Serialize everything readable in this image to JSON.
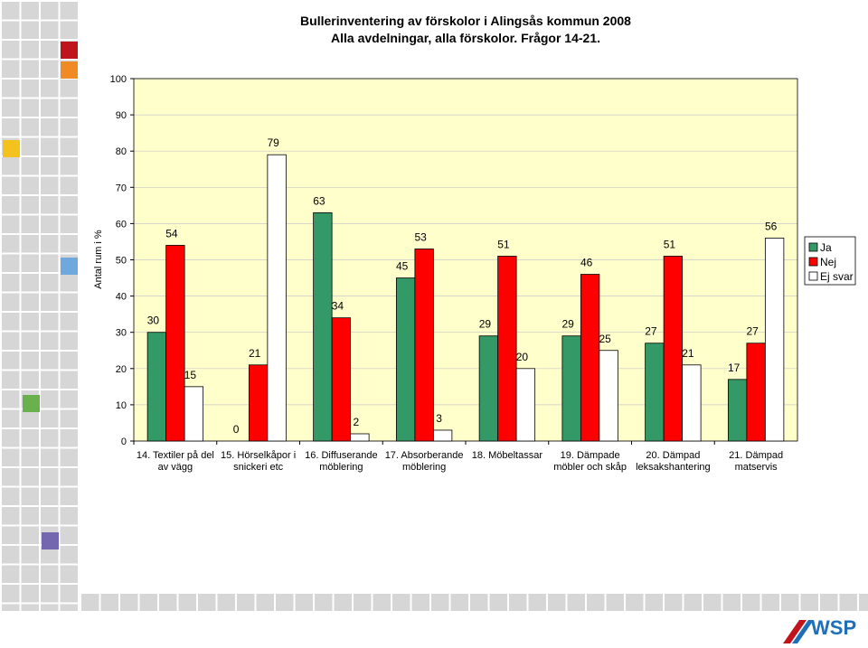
{
  "chart_data": {
    "type": "bar",
    "title": "Bullerinventering av förskolor i Alingsås kommun  2008",
    "subtitle": "Alla avdelningar, alla förskolor. Frågor 14-21.",
    "y_label": "Antal rum i %",
    "categories": [
      "14. Textiler på del av vägg",
      "15. Hörselkåpor i snickeri etc",
      "16. Diffuserande möblering",
      "17. Absorberande möblering",
      "18. Möbeltassar",
      "19. Dämpade möbler och skåp",
      "20. Dämpad leksakshantering",
      "21. Dämpad matservis"
    ],
    "series": [
      {
        "name": "Ja",
        "color": "#339966",
        "values": [
          30,
          0,
          63,
          45,
          29,
          29,
          27,
          17
        ]
      },
      {
        "name": "Nej",
        "color": "#ff0000",
        "values": [
          54,
          21,
          34,
          53,
          51,
          46,
          51,
          27
        ]
      },
      {
        "name": "Ej svar",
        "color": "#ffffff",
        "values": [
          15,
          79,
          2,
          3,
          20,
          25,
          21,
          56
        ]
      }
    ],
    "ylim": [
      0,
      100
    ],
    "yticks": [
      0,
      10,
      20,
      30,
      40,
      50,
      60,
      70,
      80,
      90,
      100
    ],
    "grid": true,
    "legend": "right",
    "plot_background": "#ffffcc"
  },
  "logo": "WSP"
}
